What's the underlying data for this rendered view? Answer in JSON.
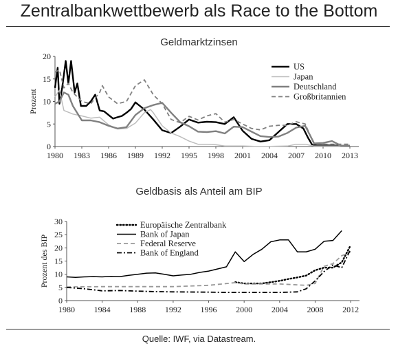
{
  "title": "Zentralbankwettbewerb als Race to the Bottom",
  "source": "Quelle: IWF, via Datastream.",
  "chart_data": [
    {
      "type": "line",
      "title": "Geldmarktzinsen",
      "ylabel": "Prozent",
      "xlim": [
        1980,
        2014
      ],
      "ylim": [
        0,
        20
      ],
      "yticks": [
        "0",
        "5",
        "10",
        "15",
        "20"
      ],
      "xticks": [
        "1980",
        "1983",
        "1986",
        "1989",
        "1992",
        "1995",
        "1998",
        "2001",
        "2004",
        "2007",
        "2010",
        "2013"
      ],
      "legend_position": "right",
      "series": [
        {
          "name": "US",
          "color": "#000000",
          "style": "solid-thick",
          "points": [
            [
              1980,
              13
            ],
            [
              1980.3,
              17.5
            ],
            [
              1980.5,
              9.5
            ],
            [
              1980.8,
              13
            ],
            [
              1981.2,
              19
            ],
            [
              1981.5,
              14
            ],
            [
              1981.8,
              19
            ],
            [
              1982.2,
              12
            ],
            [
              1982.5,
              14
            ],
            [
              1982.9,
              9
            ],
            [
              1983.5,
              9
            ],
            [
              1984,
              10
            ],
            [
              1984.5,
              11.5
            ],
            [
              1985,
              8
            ],
            [
              1985.5,
              7.8
            ],
            [
              1986,
              7
            ],
            [
              1986.5,
              6.2
            ],
            [
              1987,
              6.5
            ],
            [
              1987.5,
              6.8
            ],
            [
              1988,
              7.5
            ],
            [
              1988.5,
              8.3
            ],
            [
              1989,
              9.8
            ],
            [
              1989.5,
              9
            ],
            [
              1990,
              8.2
            ],
            [
              1991,
              6
            ],
            [
              1992,
              3.6
            ],
            [
              1993,
              3
            ],
            [
              1994,
              4.4
            ],
            [
              1995,
              6
            ],
            [
              1996,
              5.3
            ],
            [
              1997,
              5.5
            ],
            [
              1998,
              5.4
            ],
            [
              1999,
              5
            ],
            [
              2000,
              6.5
            ],
            [
              2001,
              3.5
            ],
            [
              2002,
              1.7
            ],
            [
              2003,
              1.1
            ],
            [
              2004,
              1.4
            ],
            [
              2005,
              3.2
            ],
            [
              2006,
              5
            ],
            [
              2007,
              5
            ],
            [
              2007.8,
              4
            ],
            [
              2008.3,
              2
            ],
            [
              2008.8,
              0.3
            ],
            [
              2013,
              0.15
            ]
          ]
        },
        {
          "name": "Japan",
          "color": "#bdbdbd",
          "style": "solid",
          "points": [
            [
              1980,
              11
            ],
            [
              1980.5,
              12.5
            ],
            [
              1981,
              8
            ],
            [
              1982,
              7.2
            ],
            [
              1983,
              6.8
            ],
            [
              1984,
              6.3
            ],
            [
              1985,
              6.5
            ],
            [
              1986,
              4.8
            ],
            [
              1987,
              3.9
            ],
            [
              1988,
              4
            ],
            [
              1989,
              5.2
            ],
            [
              1990,
              7.5
            ],
            [
              1990.7,
              8.2
            ],
            [
              1991,
              7.5
            ],
            [
              1992,
              4.6
            ],
            [
              1993,
              3
            ],
            [
              1994,
              2.2
            ],
            [
              1995,
              1.2
            ],
            [
              1996,
              0.5
            ],
            [
              1997,
              0.5
            ],
            [
              1998,
              0.4
            ],
            [
              1999,
              0.1
            ],
            [
              2001,
              0.1
            ],
            [
              2003,
              0
            ],
            [
              2006,
              0.1
            ],
            [
              2007,
              0.5
            ],
            [
              2008,
              0.5
            ],
            [
              2009,
              0.1
            ],
            [
              2013,
              0.1
            ]
          ]
        },
        {
          "name": "Deutschland",
          "color": "#808080",
          "style": "solid-thick",
          "points": [
            [
              1980,
              9.5
            ],
            [
              1980.5,
              10
            ],
            [
              1981,
              12
            ],
            [
              1981.5,
              11.5
            ],
            [
              1982,
              9
            ],
            [
              1983,
              5.8
            ],
            [
              1984,
              5.8
            ],
            [
              1985,
              5.4
            ],
            [
              1986,
              4.6
            ],
            [
              1987,
              4
            ],
            [
              1988,
              4.3
            ],
            [
              1989,
              7
            ],
            [
              1990,
              8.5
            ],
            [
              1991,
              9.2
            ],
            [
              1992,
              9.7
            ],
            [
              1993,
              7.5
            ],
            [
              1994,
              5.4
            ],
            [
              1995,
              4.5
            ],
            [
              1996,
              3.3
            ],
            [
              1997,
              3.2
            ],
            [
              1998,
              3.4
            ],
            [
              1999,
              2.9
            ],
            [
              2000,
              4.4
            ],
            [
              2001,
              4.3
            ],
            [
              2002,
              3.3
            ],
            [
              2003,
              2.3
            ],
            [
              2004,
              2.1
            ],
            [
              2005,
              2.2
            ],
            [
              2006,
              3
            ],
            [
              2007,
              4.2
            ],
            [
              2008,
              4.6
            ],
            [
              2009,
              0.7
            ],
            [
              2010,
              0.8
            ],
            [
              2011,
              1.2
            ],
            [
              2012,
              0.2
            ],
            [
              2013,
              0.2
            ]
          ]
        },
        {
          "name": "Großbritannien",
          "color": "#808080",
          "style": "dashed",
          "points": [
            [
              1980,
              16.5
            ],
            [
              1980.5,
              17
            ],
            [
              1981,
              13
            ],
            [
              1981.5,
              14
            ],
            [
              1982,
              12
            ],
            [
              1983,
              10
            ],
            [
              1984,
              9.5
            ],
            [
              1985,
              12
            ],
            [
              1985.3,
              13.5
            ],
            [
              1986,
              11
            ],
            [
              1987,
              9.5
            ],
            [
              1988,
              10
            ],
            [
              1989,
              13.5
            ],
            [
              1990,
              14.8
            ],
            [
              1991,
              11.5
            ],
            [
              1992,
              9.5
            ],
            [
              1993,
              6
            ],
            [
              1994,
              5.3
            ],
            [
              1995,
              6.7
            ],
            [
              1996,
              5.9
            ],
            [
              1997,
              6.8
            ],
            [
              1998,
              7.3
            ],
            [
              1999,
              5.4
            ],
            [
              2000,
              6
            ],
            [
              2001,
              5
            ],
            [
              2002,
              4
            ],
            [
              2003,
              3.7
            ],
            [
              2004,
              4.5
            ],
            [
              2005,
              4.7
            ],
            [
              2006,
              4.7
            ],
            [
              2007,
              5.5
            ],
            [
              2008,
              5
            ],
            [
              2009,
              0.5
            ],
            [
              2013,
              0.5
            ]
          ]
        }
      ]
    },
    {
      "type": "line",
      "title": "Geldbasis als Anteil am BIP",
      "ylabel": "Prozent des BIP",
      "xlim": [
        1980,
        2013
      ],
      "ylim": [
        0,
        30
      ],
      "yticks": [
        "0",
        "5",
        "10",
        "15",
        "20",
        "25",
        "30"
      ],
      "xticks": [
        "1980",
        "1984",
        "1988",
        "1992",
        "1996",
        "2000",
        "2004",
        "2008",
        "2012"
      ],
      "legend_position": "top-left",
      "series": [
        {
          "name": "Europäische Zentralbank",
          "color": "#000000",
          "style": "dotted",
          "points": [
            [
              1999,
              7
            ],
            [
              2000,
              6.5
            ],
            [
              2001,
              6.5
            ],
            [
              2002,
              6.5
            ],
            [
              2003,
              7
            ],
            [
              2004,
              7.5
            ],
            [
              2005,
              8.2
            ],
            [
              2006,
              8.8
            ],
            [
              2007,
              9.5
            ],
            [
              2008,
              11.5
            ],
            [
              2009,
              12.5
            ],
            [
              2010,
              12.5
            ],
            [
              2011,
              14.5
            ],
            [
              2012,
              21
            ]
          ]
        },
        {
          "name": "Bank of Japan",
          "color": "#000000",
          "style": "solid",
          "points": [
            [
              1980,
              9
            ],
            [
              1981,
              8.8
            ],
            [
              1982,
              9
            ],
            [
              1983,
              9.1
            ],
            [
              1984,
              9
            ],
            [
              1985,
              9.2
            ],
            [
              1986,
              9.1
            ],
            [
              1987,
              9.6
            ],
            [
              1988,
              10
            ],
            [
              1989,
              10.4
            ],
            [
              1990,
              10.5
            ],
            [
              1991,
              10
            ],
            [
              1992,
              9.4
            ],
            [
              1993,
              9.7
            ],
            [
              1994,
              10
            ],
            [
              1995,
              10.7
            ],
            [
              1996,
              11.2
            ],
            [
              1997,
              12
            ],
            [
              1998,
              12.8
            ],
            [
              1999,
              18.5
            ],
            [
              2000,
              14.8
            ],
            [
              2001,
              17.5
            ],
            [
              2002,
              19.5
            ],
            [
              2003,
              22.3
            ],
            [
              2004,
              23
            ],
            [
              2005,
              23
            ],
            [
              2006,
              18.5
            ],
            [
              2007,
              18.5
            ],
            [
              2008,
              19.5
            ],
            [
              2009,
              22.5
            ],
            [
              2010,
              22.8
            ],
            [
              2011,
              26.5
            ]
          ]
        },
        {
          "name": "Federal Reserve",
          "color": "#999999",
          "style": "dashed",
          "points": [
            [
              1980,
              5.2
            ],
            [
              1984,
              5.3
            ],
            [
              1988,
              5.3
            ],
            [
              1992,
              5.3
            ],
            [
              1996,
              5.8
            ],
            [
              1999,
              6.8
            ],
            [
              2000,
              6.3
            ],
            [
              2004,
              6.3
            ],
            [
              2007,
              5.8
            ],
            [
              2008,
              6.5
            ],
            [
              2009,
              13
            ],
            [
              2010,
              14
            ],
            [
              2011,
              17
            ],
            [
              2012,
              18.5
            ]
          ]
        },
        {
          "name": "Bank of England",
          "color": "#000000",
          "style": "dashdot",
          "points": [
            [
              1980,
              5
            ],
            [
              1982,
              4.5
            ],
            [
              1984,
              3.7
            ],
            [
              1986,
              3.8
            ],
            [
              1988,
              3.6
            ],
            [
              1990,
              3.4
            ],
            [
              1992,
              3.3
            ],
            [
              1996,
              3.2
            ],
            [
              1998,
              3.1
            ],
            [
              2000,
              3.1
            ],
            [
              2004,
              3.1
            ],
            [
              2006,
              3.3
            ],
            [
              2007,
              4.5
            ],
            [
              2008,
              7.5
            ],
            [
              2009,
              11
            ],
            [
              2010,
              13.5
            ],
            [
              2011,
              12.5
            ],
            [
              2012,
              19.5
            ]
          ]
        }
      ]
    }
  ]
}
